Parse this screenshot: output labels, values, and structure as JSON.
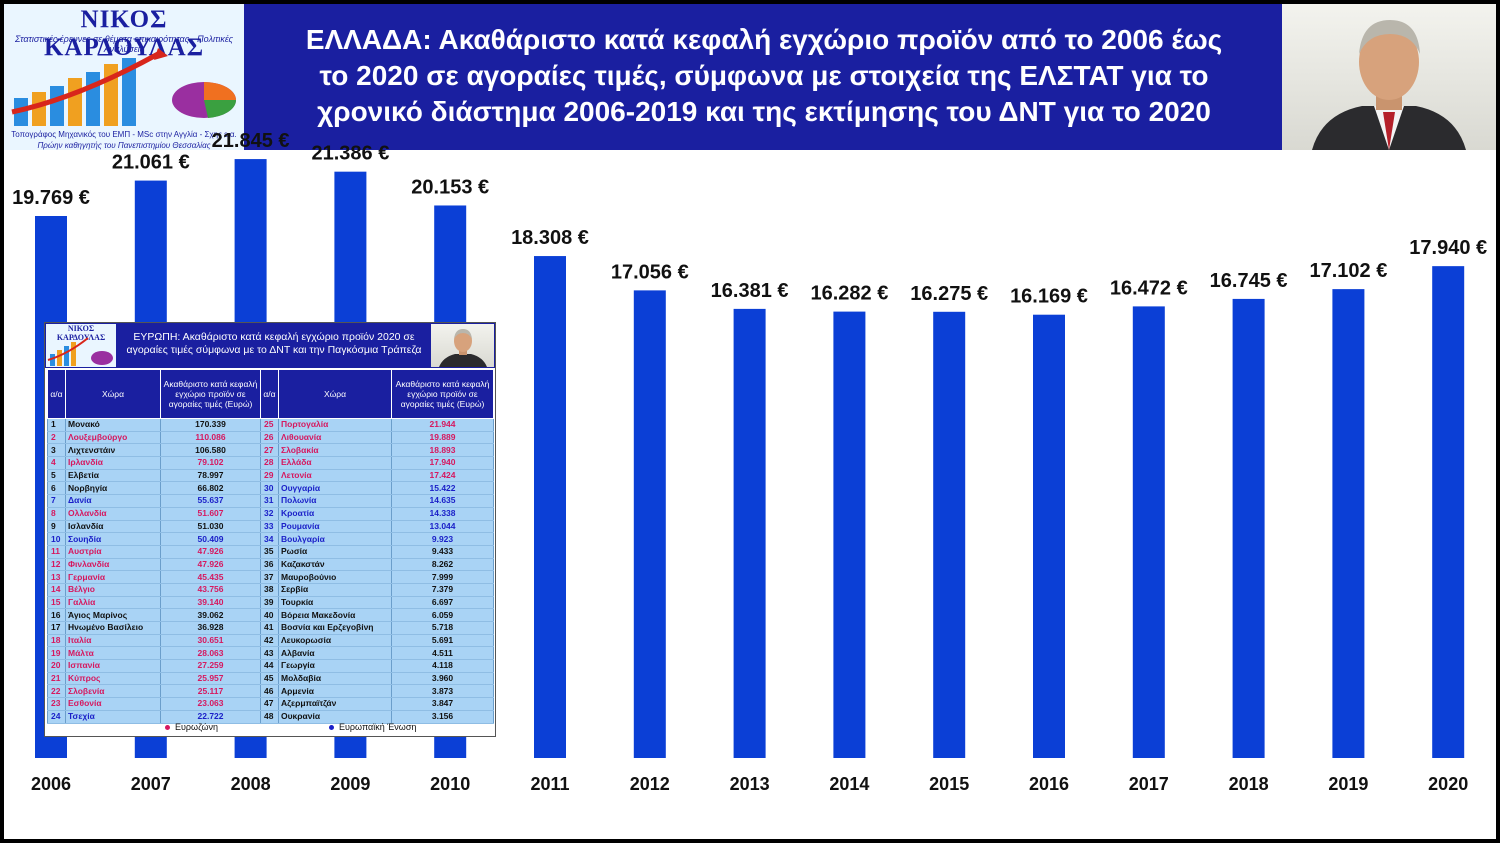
{
  "header": {
    "logo": {
      "name": "ΝΙΚΟΣ ΚΑΡΔΟΥΛΑΣ",
      "line1": "Στατιστικές έρευνες σε θέματα επικαιρότητας - Πολιτικές Αναλύσεις",
      "line2": "Τοπογράφος Μηχανικός του ΕΜΠ - MSc στην Αγγλία - Σχης ε.α.",
      "line3": "Πρώην καθηγητής του Πανεπιστημίου Θεσσαλίας"
    },
    "title_lines": [
      "ΕΛΛΑΔΑ: Ακαθάριστο κατά κεφαλή εγχώριο προϊόν από το 2006 έως",
      "το  2020  σε αγοραίες τιμές, σύμφωνα με στοιχεία της ΕΛΣΤΑΤ για το",
      "χρονικό διάστημα 2006-2019 και της εκτίμησης του ΔΝΤ για το 2020"
    ]
  },
  "colors": {
    "bar": "#0b3fd6",
    "header_bg": "#1a1fa0",
    "eurozone": "#d6185f",
    "eu": "#1a1fc8"
  },
  "chart_data": {
    "type": "bar",
    "categories": [
      "2006",
      "2007",
      "2008",
      "2009",
      "2010",
      "2011",
      "2012",
      "2013",
      "2014",
      "2015",
      "2016",
      "2017",
      "2018",
      "2019",
      "2020"
    ],
    "values": [
      19769,
      21061,
      21845,
      21386,
      20153,
      18308,
      17056,
      16381,
      16282,
      16275,
      16169,
      16472,
      16745,
      17102,
      17940
    ],
    "labels": [
      "19.769 €",
      "21.061 €",
      "21.845 €",
      "21.386 €",
      "20.153 €",
      "18.308 €",
      "17.056 €",
      "16.381 €",
      "16.282 €",
      "16.275 €",
      "16.169 €",
      "16.472 €",
      "16.745 €",
      "17.102 €",
      "17.940 €"
    ],
    "ylim": [
      0,
      24000
    ]
  },
  "inset": {
    "title": "ΕΥΡΩΠΗ: Ακαθάριστο κατά κεφαλή εγχώριο προϊόν 2020 σε αγοραίες τιμές σύμφωνα με το ΔΝΤ και την Παγκόσμια Τράπεζα",
    "logo_name": "ΝΙΚΟΣ ΚΑΡΔΟΥΛΑΣ",
    "headers": {
      "rank": "α/α",
      "country": "Χώρα",
      "value": "Ακαθάριστο κατά κεφαλή εγχώριο προϊόν σε αγοραίες τιμές (Ευρώ)"
    },
    "rows_left": [
      {
        "rank": "1",
        "country": "Μονακό",
        "value": "170.339",
        "group": "none"
      },
      {
        "rank": "2",
        "country": "Λουξεμβούργο",
        "value": "110.086",
        "group": "eurozone"
      },
      {
        "rank": "3",
        "country": "Λιχτενστάιν",
        "value": "106.580",
        "group": "none"
      },
      {
        "rank": "4",
        "country": "Ιρλανδία",
        "value": "79.102",
        "group": "eurozone"
      },
      {
        "rank": "5",
        "country": "Ελβετία",
        "value": "78.997",
        "group": "none"
      },
      {
        "rank": "6",
        "country": "Νορβηγία",
        "value": "66.802",
        "group": "none"
      },
      {
        "rank": "7",
        "country": "Δανία",
        "value": "55.637",
        "group": "eu"
      },
      {
        "rank": "8",
        "country": "Ολλανδία",
        "value": "51.607",
        "group": "eurozone"
      },
      {
        "rank": "9",
        "country": "Ισλανδία",
        "value": "51.030",
        "group": "none"
      },
      {
        "rank": "10",
        "country": "Σουηδία",
        "value": "50.409",
        "group": "eu"
      },
      {
        "rank": "11",
        "country": "Αυστρία",
        "value": "47.926",
        "group": "eurozone"
      },
      {
        "rank": "12",
        "country": "Φινλανδία",
        "value": "47.926",
        "group": "eurozone"
      },
      {
        "rank": "13",
        "country": "Γερμανία",
        "value": "45.435",
        "group": "eurozone"
      },
      {
        "rank": "14",
        "country": "Βέλγιο",
        "value": "43.756",
        "group": "eurozone"
      },
      {
        "rank": "15",
        "country": "Γαλλία",
        "value": "39.140",
        "group": "eurozone"
      },
      {
        "rank": "16",
        "country": "Άγιος Μαρίνος",
        "value": "39.062",
        "group": "none"
      },
      {
        "rank": "17",
        "country": "Ηνωμένο Βασίλειο",
        "value": "36.928",
        "group": "none"
      },
      {
        "rank": "18",
        "country": "Ιταλία",
        "value": "30.651",
        "group": "eurozone"
      },
      {
        "rank": "19",
        "country": "Μάλτα",
        "value": "28.063",
        "group": "eurozone"
      },
      {
        "rank": "20",
        "country": "Ισπανία",
        "value": "27.259",
        "group": "eurozone"
      },
      {
        "rank": "21",
        "country": "Κύπρος",
        "value": "25.957",
        "group": "eurozone"
      },
      {
        "rank": "22",
        "country": "Σλοβενία",
        "value": "25.117",
        "group": "eurozone"
      },
      {
        "rank": "23",
        "country": "Εσθονία",
        "value": "23.063",
        "group": "eurozone"
      },
      {
        "rank": "24",
        "country": "Τσεχία",
        "value": "22.722",
        "group": "eu"
      }
    ],
    "rows_right": [
      {
        "rank": "25",
        "country": "Πορτογαλία",
        "value": "21.944",
        "group": "eurozone"
      },
      {
        "rank": "26",
        "country": "Λιθουανία",
        "value": "19.889",
        "group": "eurozone"
      },
      {
        "rank": "27",
        "country": "Σλοβακία",
        "value": "18.893",
        "group": "eurozone"
      },
      {
        "rank": "28",
        "country": "Ελλάδα",
        "value": "17.940",
        "group": "eurozone"
      },
      {
        "rank": "29",
        "country": "Λετονία",
        "value": "17.424",
        "group": "eurozone"
      },
      {
        "rank": "30",
        "country": "Ουγγαρία",
        "value": "15.422",
        "group": "eu"
      },
      {
        "rank": "31",
        "country": "Πολωνία",
        "value": "14.635",
        "group": "eu"
      },
      {
        "rank": "32",
        "country": "Κροατία",
        "value": "14.338",
        "group": "eu"
      },
      {
        "rank": "33",
        "country": "Ρουμανία",
        "value": "13.044",
        "group": "eu"
      },
      {
        "rank": "34",
        "country": "Βουλγαρία",
        "value": "9.923",
        "group": "eu"
      },
      {
        "rank": "35",
        "country": "Ρωσία",
        "value": "9.433",
        "group": "none"
      },
      {
        "rank": "36",
        "country": "Καζακστάν",
        "value": "8.262",
        "group": "none"
      },
      {
        "rank": "37",
        "country": "Μαυροβούνιο",
        "value": "7.999",
        "group": "none"
      },
      {
        "rank": "38",
        "country": "Σερβία",
        "value": "7.379",
        "group": "none"
      },
      {
        "rank": "39",
        "country": "Τουρκία",
        "value": "6.697",
        "group": "none"
      },
      {
        "rank": "40",
        "country": "Βόρεια Μακεδονία",
        "value": "6.059",
        "group": "none"
      },
      {
        "rank": "41",
        "country": "Βοσνία και Ερζεγοβίνη",
        "value": "5.718",
        "group": "none"
      },
      {
        "rank": "42",
        "country": "Λευκορωσία",
        "value": "5.691",
        "group": "none"
      },
      {
        "rank": "43",
        "country": "Αλβανία",
        "value": "4.511",
        "group": "none"
      },
      {
        "rank": "44",
        "country": "Γεωργία",
        "value": "4.118",
        "group": "none"
      },
      {
        "rank": "45",
        "country": "Μολδαβία",
        "value": "3.960",
        "group": "none"
      },
      {
        "rank": "46",
        "country": "Αρμενία",
        "value": "3.873",
        "group": "none"
      },
      {
        "rank": "47",
        "country": "Αζερμπαϊτζάν",
        "value": "3.847",
        "group": "none"
      },
      {
        "rank": "48",
        "country": "Ουκρανία",
        "value": "3.156",
        "group": "none"
      }
    ],
    "legend": {
      "eurozone": "Ευρωζώνη",
      "eu": "Ευρωπαϊκή Ένωση"
    }
  }
}
